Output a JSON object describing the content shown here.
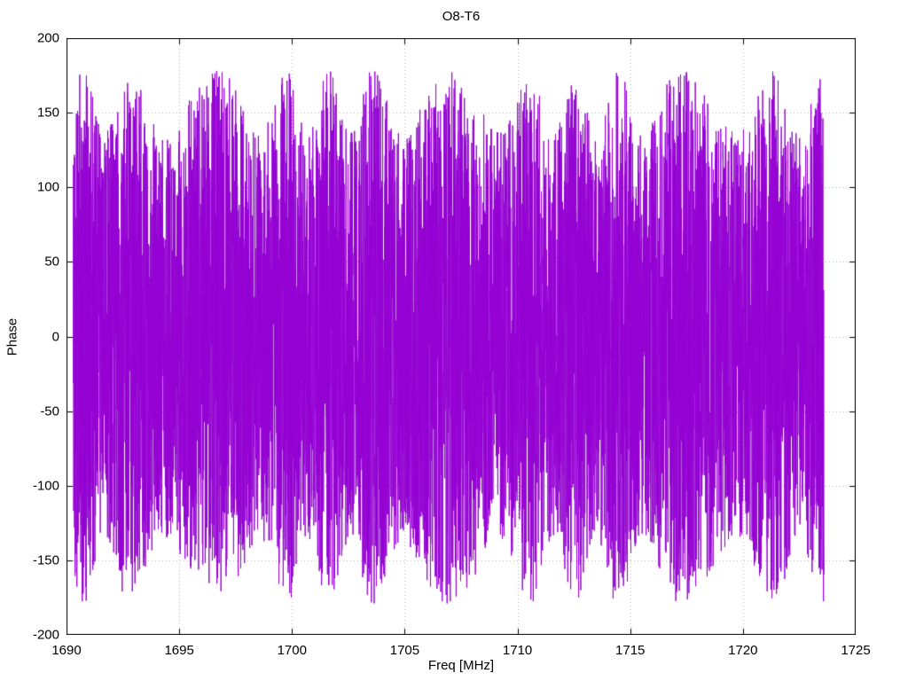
{
  "chart_data": {
    "type": "line",
    "title": "O8-T6",
    "xlabel": "Freq [MHz]",
    "ylabel": "Phase",
    "xlim": [
      1690,
      1725
    ],
    "ylim": [
      -200,
      200
    ],
    "xticks": [
      1690,
      1695,
      1700,
      1705,
      1710,
      1715,
      1720,
      1725
    ],
    "yticks": [
      200,
      150,
      100,
      50,
      0,
      -50,
      -100,
      -150,
      -200
    ],
    "grid": true,
    "grid_style": "dotted",
    "legend_position": "none",
    "series": [
      {
        "name": "phase",
        "color": "#9400d3",
        "x_start": 1690.3,
        "x_end": 1723.6,
        "n_points": 6000,
        "y_distribution": "uniform",
        "y_min": -180,
        "y_max": 180,
        "seed": 7,
        "description": "Wrapped phase noise, approximately uniformly distributed between -180 and +180 degrees across the observed band; successive points connected with lines producing a dense filled appearance"
      }
    ]
  },
  "colors": {
    "line": "#9400d3",
    "grid": "#b0b0b0",
    "border": "#000000",
    "background": "#ffffff",
    "text": "#000000"
  }
}
